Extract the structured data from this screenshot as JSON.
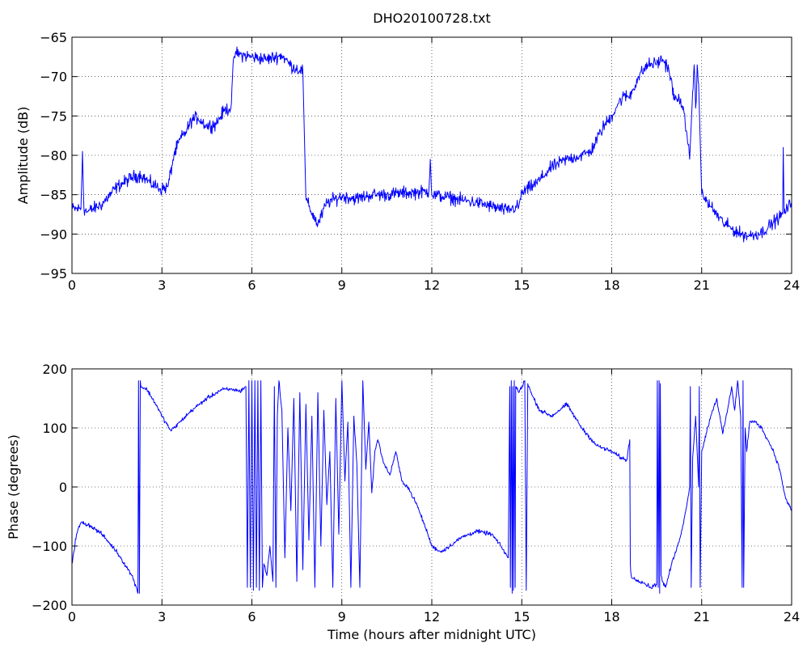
{
  "chart_data": [
    {
      "type": "line",
      "title": "DHO20100728.txt",
      "xlabel": "",
      "ylabel": "Amplitude (dB)",
      "xlim": [
        0,
        24
      ],
      "ylim": [
        -95,
        -65
      ],
      "xticks": [
        0,
        3,
        6,
        9,
        12,
        15,
        18,
        21,
        24
      ],
      "xtick_labels": [
        "0",
        "3",
        "6",
        "9",
        "12",
        "15",
        "18",
        "21",
        "24"
      ],
      "yticks": [
        -95,
        -90,
        -85,
        -80,
        -75,
        -70,
        -65
      ],
      "ytick_labels": [
        "−95",
        "−90",
        "−85",
        "−80",
        "−75",
        "−70",
        "−65"
      ],
      "grid": true,
      "color": "#0000ff",
      "noise": 0.7,
      "x": [
        0,
        0.3,
        0.35,
        0.4,
        0.45,
        0.5,
        1.0,
        1.5,
        2.0,
        2.3,
        2.6,
        3.0,
        3.2,
        3.4,
        3.6,
        3.8,
        4.0,
        4.2,
        4.5,
        4.8,
        5.1,
        5.3,
        5.4,
        5.45,
        5.6,
        6.0,
        6.5,
        7.0,
        7.3,
        7.6,
        7.7,
        7.8,
        7.9,
        8.2,
        8.5,
        9.0,
        9.5,
        10.0,
        10.5,
        11.0,
        11.5,
        11.9,
        11.95,
        12.0,
        12.5,
        13.0,
        13.5,
        14.0,
        14.5,
        14.9,
        15.0,
        15.5,
        16.0,
        16.5,
        17.0,
        17.3,
        17.7,
        18.0,
        18.2,
        18.4,
        18.6,
        18.9,
        19.2,
        19.5,
        19.7,
        19.9,
        20.1,
        20.3,
        20.5,
        20.6,
        20.7,
        20.75,
        20.8,
        20.85,
        20.9,
        21.0,
        21.3,
        21.7,
        22.0,
        22.3,
        22.6,
        23.0,
        23.4,
        23.7,
        23.72,
        23.75,
        24.0
      ],
      "y": [
        -86.8,
        -86.8,
        -79.5,
        -86.8,
        -87.0,
        -87.2,
        -86.2,
        -84.0,
        -82.8,
        -82.5,
        -83.5,
        -84.3,
        -84.0,
        -80.0,
        -78.0,
        -77.0,
        -75.5,
        -75.2,
        -76.3,
        -76.0,
        -74.2,
        -74.0,
        -67.5,
        -67.0,
        -67.2,
        -67.5,
        -67.8,
        -67.3,
        -68.6,
        -69.2,
        -69.2,
        -85.5,
        -86.5,
        -88.8,
        -86.0,
        -85.2,
        -85.5,
        -85.0,
        -85.0,
        -84.8,
        -84.7,
        -84.6,
        -80.5,
        -85.0,
        -85.3,
        -85.7,
        -86.0,
        -86.5,
        -87.0,
        -86.5,
        -84.8,
        -83.5,
        -81.5,
        -80.5,
        -80.0,
        -79.5,
        -76.5,
        -75.0,
        -73.5,
        -72.5,
        -72.5,
        -70.0,
        -68.5,
        -68.3,
        -67.8,
        -69.0,
        -73.0,
        -72.8,
        -77.0,
        -80.5,
        -72.0,
        -68.5,
        -74.0,
        -68.5,
        -71.0,
        -85.0,
        -86.5,
        -88.5,
        -89.3,
        -90.0,
        -90.2,
        -89.8,
        -88.5,
        -87.5,
        -79.0,
        -87.3,
        -86.0
      ]
    },
    {
      "type": "line",
      "title": "",
      "xlabel": "Time (hours after midnight UTC)",
      "ylabel": "Phase (degrees)",
      "xlim": [
        0,
        24
      ],
      "ylim": [
        -200,
        200
      ],
      "xticks": [
        0,
        3,
        6,
        9,
        12,
        15,
        18,
        21,
        24
      ],
      "xtick_labels": [
        "0",
        "3",
        "6",
        "9",
        "12",
        "15",
        "18",
        "21",
        "24"
      ],
      "yticks": [
        -200,
        -100,
        0,
        100,
        200
      ],
      "ytick_labels": [
        "−200",
        "−100",
        "0",
        "100",
        "200"
      ],
      "grid": true,
      "color": "#0000ff",
      "noise": 3,
      "x": [
        0,
        0.15,
        0.3,
        0.6,
        1.0,
        1.5,
        2.0,
        2.15,
        2.2,
        2.22,
        2.25,
        2.28,
        2.3,
        2.5,
        2.8,
        3.0,
        3.3,
        3.6,
        4.0,
        4.5,
        5.0,
        5.4,
        5.6,
        5.8,
        5.85,
        5.9,
        5.95,
        6.0,
        6.05,
        6.1,
        6.15,
        6.2,
        6.25,
        6.3,
        6.35,
        6.4,
        6.5,
        6.6,
        6.7,
        6.75,
        6.8,
        6.85,
        6.9,
        7.0,
        7.1,
        7.2,
        7.3,
        7.4,
        7.5,
        7.6,
        7.7,
        7.8,
        7.9,
        8.0,
        8.1,
        8.2,
        8.3,
        8.4,
        8.5,
        8.6,
        8.7,
        8.8,
        8.9,
        9.0,
        9.1,
        9.2,
        9.3,
        9.4,
        9.5,
        9.6,
        9.7,
        9.8,
        9.9,
        10.0,
        10.1,
        10.2,
        10.4,
        10.6,
        10.8,
        11.0,
        11.2,
        11.5,
        11.8,
        12.0,
        12.3,
        12.6,
        13.0,
        13.5,
        14.0,
        14.3,
        14.55,
        14.6,
        14.62,
        14.65,
        14.68,
        14.7,
        14.72,
        14.75,
        14.78,
        14.8,
        14.9,
        15.0,
        15.1,
        15.15,
        15.2,
        15.25,
        15.3,
        15.6,
        16.0,
        16.5,
        17.0,
        17.5,
        18.0,
        18.3,
        18.5,
        18.6,
        18.62,
        18.65,
        18.7,
        19.0,
        19.3,
        19.5,
        19.52,
        19.55,
        19.58,
        19.6,
        19.62,
        19.65,
        19.7,
        19.8,
        20.0,
        20.2,
        20.4,
        20.6,
        20.62,
        20.65,
        20.7,
        20.8,
        20.9,
        20.92,
        20.95,
        21.0,
        21.3,
        21.5,
        21.7,
        21.9,
        22.0,
        22.1,
        22.2,
        22.3,
        22.35,
        22.38,
        22.4,
        22.45,
        22.5,
        22.6,
        22.8,
        23.0,
        23.2,
        23.4,
        23.6,
        23.8,
        24.0
      ],
      "y": [
        -130,
        -80,
        -60,
        -65,
        -80,
        -110,
        -150,
        -170,
        -180,
        180,
        -180,
        180,
        170,
        165,
        140,
        120,
        95,
        110,
        130,
        150,
        165,
        165,
        162,
        170,
        -170,
        180,
        -170,
        180,
        -175,
        180,
        -170,
        180,
        -175,
        180,
        -170,
        -130,
        -150,
        -100,
        -160,
        170,
        -170,
        120,
        180,
        130,
        -120,
        100,
        -40,
        150,
        -160,
        160,
        -140,
        140,
        -90,
        120,
        -170,
        160,
        -100,
        130,
        -30,
        60,
        -170,
        150,
        -80,
        180,
        10,
        110,
        -170,
        120,
        40,
        -170,
        180,
        30,
        110,
        -10,
        60,
        80,
        40,
        20,
        60,
        10,
        0,
        -30,
        -70,
        -100,
        -110,
        -100,
        -85,
        -75,
        -80,
        -100,
        -120,
        170,
        -170,
        180,
        -180,
        170,
        -175,
        180,
        -170,
        170,
        160,
        170,
        180,
        -175,
        175,
        170,
        160,
        130,
        120,
        140,
        100,
        70,
        60,
        50,
        45,
        80,
        -130,
        -150,
        -155,
        -160,
        -170,
        -165,
        180,
        -170,
        180,
        -180,
        175,
        -150,
        -160,
        -170,
        -130,
        -100,
        -60,
        0,
        170,
        -170,
        50,
        120,
        0,
        170,
        -170,
        60,
        120,
        150,
        90,
        140,
        170,
        130,
        180,
        120,
        -170,
        180,
        -170,
        100,
        60,
        110,
        110,
        100,
        80,
        60,
        30,
        -20,
        -40
      ]
    }
  ]
}
